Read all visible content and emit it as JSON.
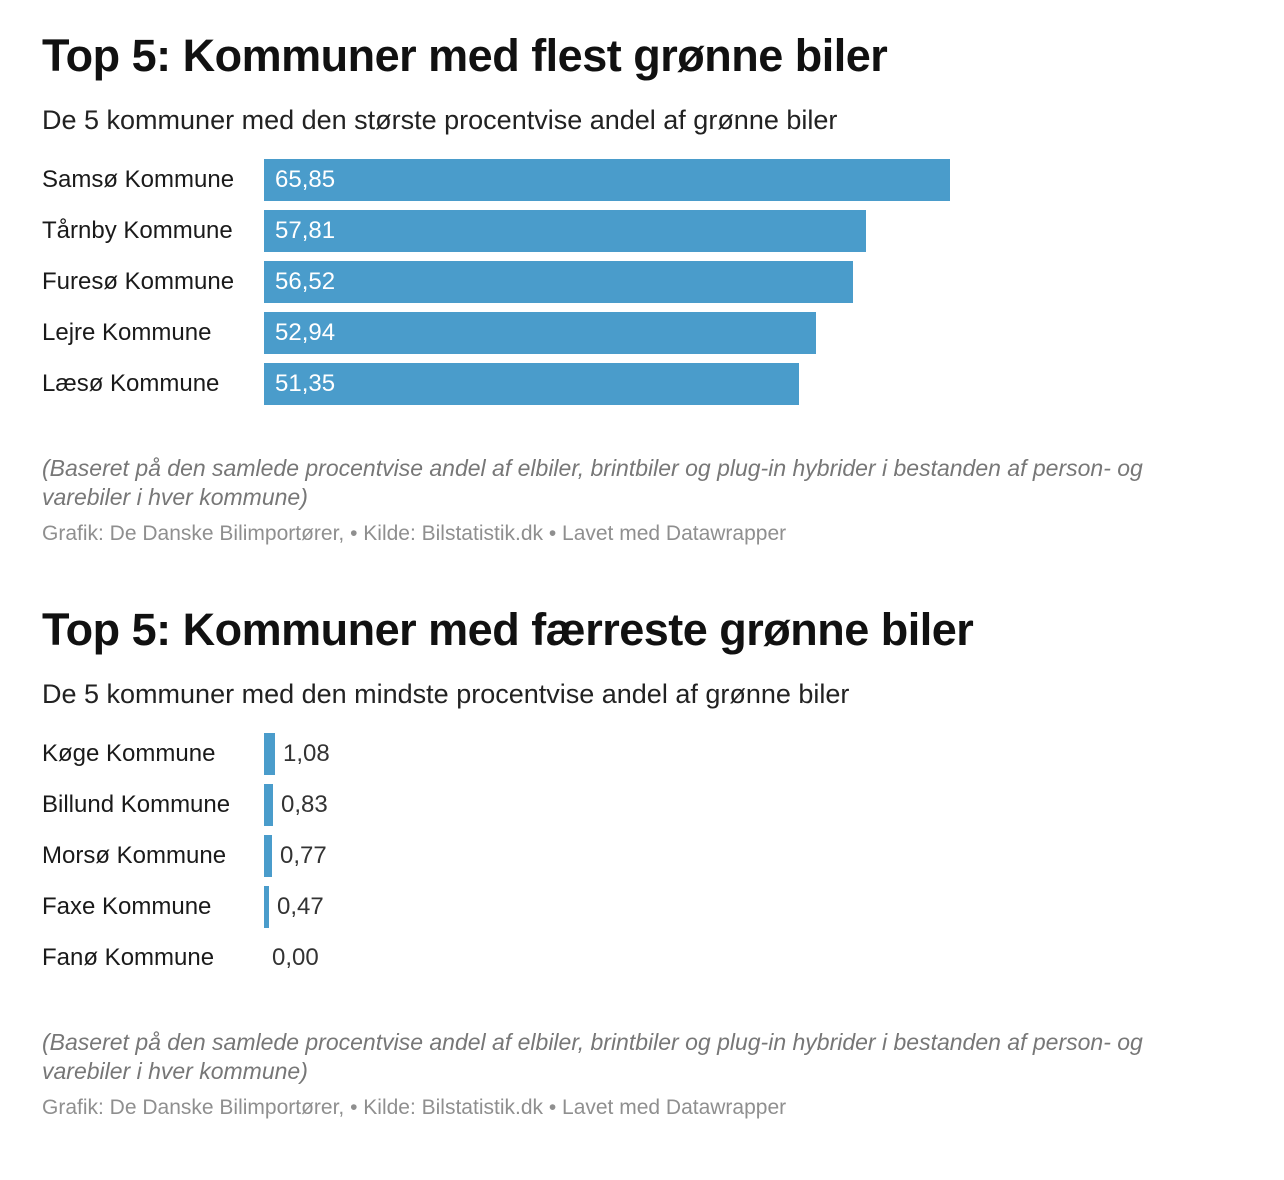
{
  "charts": [
    {
      "title": "Top 5: Kommuner med flest grønne biler",
      "subtitle": "De 5 kommuner med den største procentvise andel af grønne biler",
      "note": "(Baseret på den samlede procentvise andel af elbiler, brintbiler og plug-in hybrider i bestanden af person- og varebiler i hver kommune)",
      "credit": "Grafik: De Danske Bilimportører, • Kilde: Bilstatistik.dk • Lavet med Datawrapper",
      "bar_color": "#4a9ccb"
    },
    {
      "title": "Top 5: Kommuner med færreste grønne biler",
      "subtitle": "De 5 kommuner med den mindste procentvise andel af grønne biler",
      "note": "(Baseret på den samlede procentvise andel af elbiler, brintbiler og plug-in hybrider i bestanden af person- og varebiler i hver kommune)",
      "credit": "Grafik: De Danske Bilimportører, • Kilde: Bilstatistik.dk • Lavet med Datawrapper",
      "bar_color": "#4a9ccb"
    }
  ],
  "chart_data": [
    {
      "type": "bar",
      "orientation": "horizontal",
      "categories": [
        "Samsø Kommune",
        "Tårnby Kommune",
        "Furesø Kommune",
        "Lejre Kommune",
        "Læsø Kommune"
      ],
      "values": [
        65.85,
        57.81,
        56.52,
        52.94,
        51.35
      ],
      "value_labels": [
        "65,85",
        "57,81",
        "56,52",
        "52,94",
        "51,35"
      ],
      "xlim": [
        0,
        65.85
      ],
      "grid": false,
      "title": "Top 5: Kommuner med flest grønne biler"
    },
    {
      "type": "bar",
      "orientation": "horizontal",
      "categories": [
        "Køge Kommune",
        "Billund Kommune",
        "Morsø Kommune",
        "Faxe Kommune",
        "Fanø Kommune"
      ],
      "values": [
        1.08,
        0.83,
        0.77,
        0.47,
        0.0
      ],
      "value_labels": [
        "1,08",
        "0,83",
        "0,77",
        "0,47",
        "0,00"
      ],
      "xlim": [
        0,
        65.85
      ],
      "grid": false,
      "title": "Top 5: Kommuner med færreste grønne biler"
    }
  ]
}
